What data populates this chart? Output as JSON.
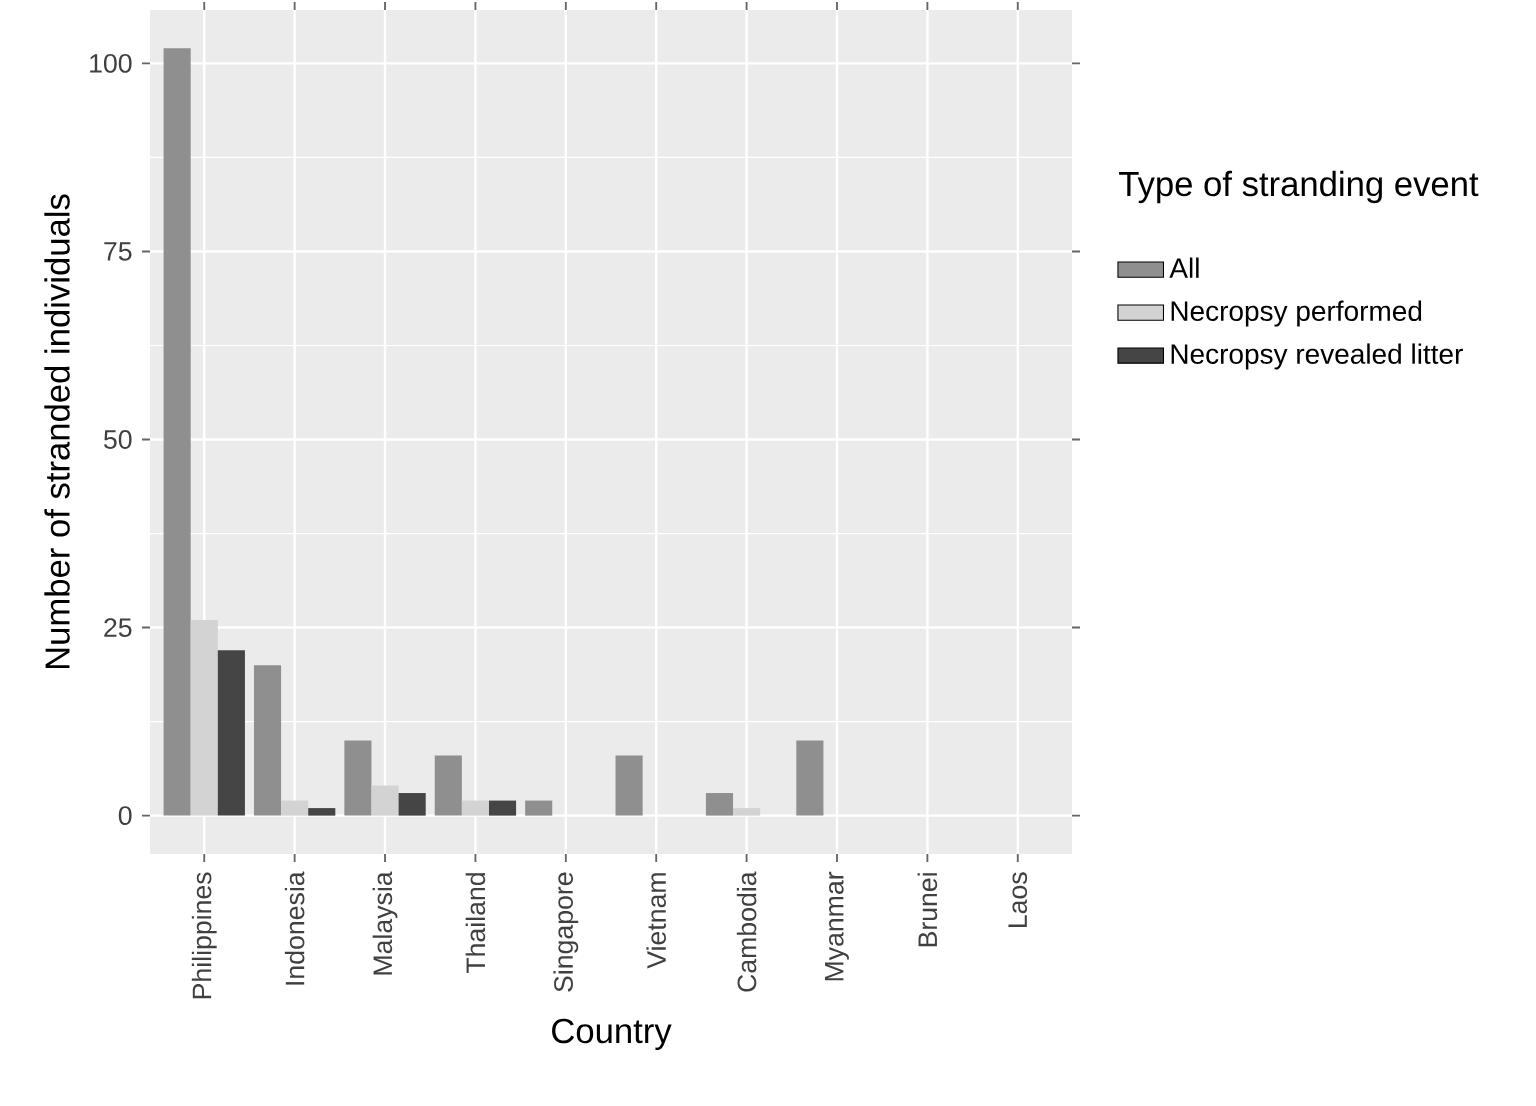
{
  "chart_data": {
    "type": "bar",
    "xlabel": "Country",
    "ylabel": "Number of stranded individuals",
    "legend_title": "Type of stranding event",
    "categories": [
      "Philippines",
      "Indonesia",
      "Malaysia",
      "Thailand",
      "Singapore",
      "Vietnam",
      "Cambodia",
      "Myanmar",
      "Brunei",
      "Laos"
    ],
    "series": [
      {
        "name": "All",
        "color": "#8f8f8f",
        "values": [
          102,
          20,
          10,
          8,
          2,
          8,
          3,
          10,
          0,
          0
        ]
      },
      {
        "name": "Necropsy performed",
        "color": "#d3d3d3",
        "values": [
          26,
          2,
          4,
          2,
          0,
          0,
          1,
          0,
          0,
          0
        ]
      },
      {
        "name": "Necropsy revealed litter",
        "color": "#454545",
        "values": [
          22,
          1,
          3,
          2,
          0,
          0,
          0,
          0,
          0,
          0
        ]
      }
    ],
    "ylim": [
      -5.1,
      107.1
    ],
    "yticks": [
      0,
      25,
      50,
      75,
      100
    ],
    "grid": true,
    "legend": "right"
  }
}
